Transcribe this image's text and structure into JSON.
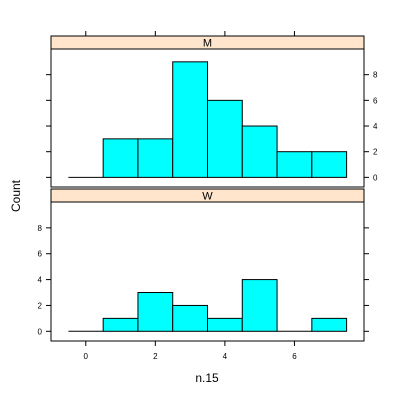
{
  "chart_data": {
    "type": "bar",
    "subtype": "histogram",
    "xlabel": "n.15",
    "ylabel": "Count",
    "xlim": [
      -1,
      8
    ],
    "ylim": [
      -0.75,
      10
    ],
    "x_ticks": [
      0,
      2,
      4,
      6
    ],
    "y_ticks": [
      0,
      2,
      4,
      6,
      8
    ],
    "bin_edges": [
      -0.5,
      0.5,
      1.5,
      2.5,
      3.5,
      4.5,
      5.5,
      6.5,
      7.5
    ],
    "grid": false,
    "layout": "two panels stacked, shared axes",
    "panels": [
      {
        "strip_label": "M",
        "values": [
          0,
          3,
          3,
          9,
          6,
          4,
          2,
          2
        ]
      },
      {
        "strip_label": "W",
        "values": [
          0,
          1,
          3,
          2,
          1,
          4,
          0,
          1
        ]
      }
    ],
    "colors": {
      "bar_fill": "#00ffff",
      "bar_stroke": "#000000",
      "strip_fill": "#ffe5cc",
      "axis": "#000000"
    }
  }
}
